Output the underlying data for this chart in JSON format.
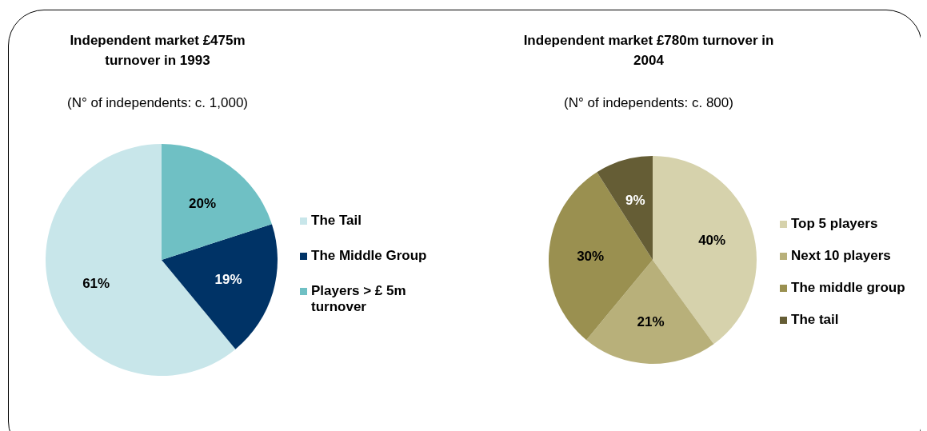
{
  "chart_data": [
    {
      "type": "pie",
      "title": "Independent market £475m turnover in 1993",
      "subtitle": "(N° of independents: c. 1,000)",
      "categories": [
        "The Tail",
        "The Middle Group",
        "Players > £ 5m turnover"
      ],
      "values": [
        61,
        19,
        20
      ],
      "colors": [
        "#c8e6ea",
        "#003366",
        "#6fc0c4"
      ],
      "value_labels": [
        "61%",
        "19%",
        "20%"
      ],
      "legend": "right"
    },
    {
      "type": "pie",
      "title": "Independent market £780m turnover in 2004",
      "subtitle": "(N° of independents: c. 800)",
      "categories": [
        "Top 5 players",
        "Next 10 players",
        "The middle group",
        "The tail"
      ],
      "values": [
        40,
        21,
        30,
        9
      ],
      "colors": [
        "#d6d2ac",
        "#b8b07a",
        "#9a9050",
        "#655d35"
      ],
      "value_labels": [
        "40%",
        "21%",
        "30%",
        "9%"
      ],
      "legend": "right"
    }
  ]
}
